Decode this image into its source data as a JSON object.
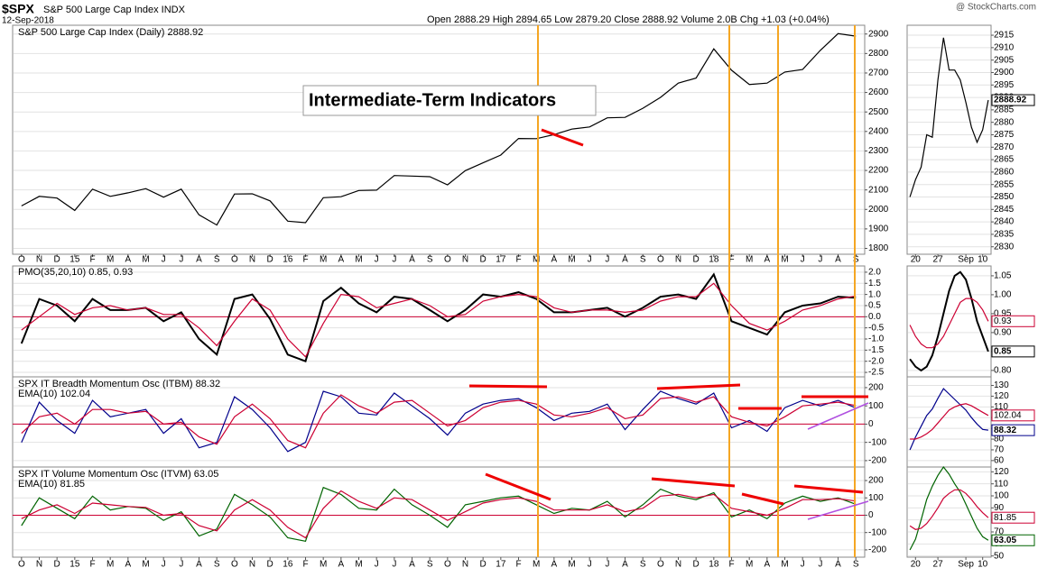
{
  "header": {
    "symbol": "$SPX",
    "name": "S&P 500 Large Cap Index INDX",
    "date": "12-Sep-2018",
    "quote": "Open 2888.29 High 2894.65 Low 2879.20 Close 2888.92 Volume 2.0B Chg +1.03 (+0.04%)",
    "credit": "@ StockCharts.com"
  },
  "chart_data": [
    {
      "type": "line",
      "annotation": "Intermediate-Term Indicators",
      "categories": [
        "O",
        "N",
        "D",
        "15",
        "F",
        "M",
        "A",
        "M",
        "J",
        "J",
        "A",
        "S",
        "O",
        "N",
        "D",
        "16",
        "F",
        "M",
        "A",
        "M",
        "J",
        "J",
        "A",
        "S",
        "O",
        "N",
        "D",
        "17",
        "F",
        "M",
        "A",
        "M",
        "J",
        "J",
        "A",
        "S",
        "O",
        "N",
        "D",
        "18",
        "F",
        "M",
        "A",
        "M",
        "J",
        "J",
        "A",
        "S"
      ],
      "series": [
        {
          "name": "S&P 500 Large Cap Index (Daily) 2888.92",
          "color": "#000000",
          "values": [
            2018,
            2067,
            2058,
            1995,
            2104,
            2067,
            2085,
            2107,
            2063,
            2104,
            1972,
            1920,
            2079,
            2080,
            2044,
            1940,
            1932,
            2060,
            2065,
            2097,
            2099,
            2174,
            2171,
            2168,
            2126,
            2199,
            2239,
            2279,
            2364,
            2363,
            2384,
            2412,
            2423,
            2470,
            2472,
            2519,
            2575,
            2648,
            2674,
            2824,
            2714,
            2641,
            2648,
            2705,
            2718,
            2816,
            2902,
            2889
          ]
        }
      ],
      "ylim": [
        1770,
        2945
      ],
      "yticks": [
        1800,
        1900,
        2000,
        2100,
        2200,
        2300,
        2400,
        2500,
        2600,
        2700,
        2800,
        2900
      ]
    },
    {
      "type": "line",
      "title": "PMO(35,20,10) 0.85, 0.93",
      "reference_line": 0,
      "series": [
        {
          "color": "#000000",
          "values": [
            -1.2,
            0.8,
            0.5,
            -0.2,
            0.8,
            0.3,
            0.3,
            0.4,
            -0.2,
            0.2,
            -1.0,
            -1.7,
            0.8,
            1.0,
            -0.1,
            -1.7,
            -2.0,
            0.7,
            1.3,
            0.6,
            0.2,
            0.9,
            0.8,
            0.3,
            -0.2,
            0.3,
            1.0,
            0.9,
            1.1,
            0.8,
            0.2,
            0.2,
            0.3,
            0.4,
            0.0,
            0.4,
            0.9,
            1.0,
            0.8,
            1.9,
            -0.2,
            -0.5,
            -0.8,
            0.2,
            0.5,
            0.6,
            0.9,
            0.85
          ]
        },
        {
          "color": "#cc0033",
          "values": [
            -0.6,
            0.0,
            0.6,
            0.1,
            0.4,
            0.5,
            0.3,
            0.4,
            0.1,
            0.1,
            -0.5,
            -1.3,
            -0.2,
            0.8,
            0.3,
            -1.0,
            -1.8,
            -0.3,
            1.0,
            0.9,
            0.4,
            0.6,
            0.8,
            0.5,
            0.0,
            0.1,
            0.7,
            0.9,
            1.0,
            0.9,
            0.4,
            0.2,
            0.3,
            0.3,
            0.2,
            0.3,
            0.7,
            0.9,
            0.9,
            1.5,
            0.5,
            -0.3,
            -0.6,
            -0.2,
            0.3,
            0.5,
            0.8,
            0.93
          ]
        }
      ],
      "ylim": [
        -2.7,
        2.28
      ],
      "yticks": [
        -2.5,
        {
          "value": -2,
          "label": "-2.0"
        },
        -1.5,
        {
          "value": -1,
          "label": "-1.0"
        },
        -0.5,
        {
          "value": 0,
          "label": "0.0"
        },
        0.5,
        {
          "value": 1,
          "label": "1.0"
        },
        1.5,
        {
          "value": 2,
          "label": "2.0"
        }
      ]
    },
    {
      "type": "line",
      "reference_line": 0,
      "series": [
        {
          "name": "SPX IT Breadth Momentum Osc (ITBM) 88.32",
          "color": "#00008b",
          "values": [
            -100,
            120,
            20,
            -50,
            130,
            40,
            60,
            80,
            -50,
            30,
            -130,
            -100,
            150,
            80,
            -20,
            -150,
            -100,
            180,
            150,
            60,
            50,
            170,
            100,
            30,
            -60,
            60,
            110,
            130,
            140,
            90,
            20,
            60,
            70,
            110,
            -30,
            80,
            180,
            140,
            110,
            170,
            -20,
            20,
            -40,
            90,
            130,
            100,
            130,
            88.32
          ]
        },
        {
          "name": "EMA(10) 102.04",
          "color": "#cc0033",
          "values": [
            -50,
            40,
            60,
            0,
            80,
            80,
            60,
            70,
            0,
            10,
            -70,
            -110,
            40,
            110,
            30,
            -90,
            -130,
            60,
            160,
            100,
            60,
            120,
            130,
            60,
            -10,
            20,
            90,
            120,
            130,
            110,
            50,
            40,
            60,
            90,
            30,
            50,
            140,
            150,
            120,
            150,
            40,
            10,
            -10,
            40,
            100,
            110,
            120,
            102.04
          ]
        }
      ],
      "ylim": [
        -235,
        259
      ],
      "yticks": [
        -200,
        -100,
        0,
        100,
        200
      ]
    },
    {
      "type": "line",
      "reference_line": 0,
      "categories": [
        "O",
        "N",
        "D",
        "15",
        "F",
        "M",
        "A",
        "M",
        "J",
        "J",
        "A",
        "S",
        "O",
        "N",
        "D",
        "16",
        "F",
        "M",
        "A",
        "M",
        "J",
        "J",
        "A",
        "S",
        "O",
        "N",
        "D",
        "17",
        "F",
        "M",
        "A",
        "M",
        "J",
        "J",
        "A",
        "S",
        "O",
        "N",
        "D",
        "18",
        "F",
        "M",
        "A",
        "M",
        "J",
        "J",
        "A",
        "S"
      ],
      "series": [
        {
          "name": "SPX IT Volume Momentum Osc (ITVM) 63.05",
          "color": "#006400",
          "values": [
            -60,
            100,
            40,
            -20,
            110,
            30,
            50,
            40,
            -30,
            20,
            -120,
            -80,
            120,
            60,
            -10,
            -130,
            -150,
            160,
            120,
            40,
            30,
            150,
            60,
            0,
            -70,
            60,
            80,
            100,
            110,
            60,
            10,
            40,
            30,
            80,
            -10,
            60,
            150,
            110,
            90,
            130,
            -10,
            30,
            -20,
            70,
            110,
            80,
            100,
            63.05
          ]
        },
        {
          "name": "EMA(10) 81.85",
          "color": "#cc0033",
          "values": [
            -20,
            30,
            60,
            10,
            70,
            60,
            50,
            45,
            0,
            10,
            -60,
            -90,
            30,
            90,
            30,
            -70,
            -130,
            40,
            140,
            80,
            40,
            100,
            90,
            30,
            -30,
            20,
            70,
            90,
            100,
            80,
            30,
            30,
            30,
            60,
            20,
            40,
            110,
            120,
            100,
            120,
            40,
            20,
            0,
            40,
            90,
            90,
            95,
            81.85
          ]
        }
      ],
      "ylim": [
        -242,
        278
      ],
      "yticks": [
        -200,
        -100,
        0,
        100,
        200
      ]
    },
    {
      "type": "line",
      "categories": [
        null,
        "20",
        null,
        null,
        null,
        "27",
        null,
        null,
        null,
        null,
        "Sep",
        null,
        null,
        "10",
        null
      ],
      "series": [
        {
          "color": "#000000",
          "values": [
            2850,
            2857,
            2862,
            2875,
            2874,
            2897,
            2914,
            2901,
            2901,
            2897,
            2888,
            2878,
            2872,
            2877,
            2888.92
          ]
        }
      ],
      "ylim": [
        2827,
        2919
      ],
      "yticks": [
        2830,
        2835,
        2840,
        2845,
        2850,
        2855,
        2860,
        2865,
        2870,
        2875,
        2880,
        2885,
        2890,
        2895,
        2900,
        2905,
        2910,
        2915
      ]
    },
    {
      "type": "line",
      "series": [
        {
          "color": "#000000",
          "values": [
            0.83,
            0.81,
            0.8,
            0.81,
            0.84,
            0.89,
            0.95,
            1.01,
            1.05,
            1.06,
            1.04,
            0.99,
            0.93,
            0.89,
            0.85
          ]
        },
        {
          "color": "#cc0033",
          "values": [
            0.92,
            0.89,
            0.87,
            0.86,
            0.86,
            0.87,
            0.89,
            0.92,
            0.95,
            0.98,
            0.99,
            0.99,
            0.98,
            0.96,
            0.93
          ]
        }
      ],
      "ylim": [
        0.783,
        1.076
      ],
      "yticks": [
        {
          "value": 0.8,
          "label": "0.80"
        },
        0.85,
        {
          "value": 0.9,
          "label": "0.90"
        },
        0.95,
        {
          "value": 1,
          "label": "1.00"
        },
        1.05
      ]
    },
    {
      "type": "line",
      "series": [
        {
          "color": "#00008b",
          "values": [
            70,
            82,
            92,
            102,
            108,
            118,
            127,
            122,
            117,
            112,
            107,
            100,
            94,
            89,
            88.32
          ]
        },
        {
          "color": "#cc0033",
          "values": [
            80,
            80,
            82,
            85,
            89,
            95,
            101,
            107,
            110,
            112,
            113,
            111,
            108,
            105,
            102.04
          ]
        }
      ],
      "ylim": [
        54,
        138
      ],
      "yticks": [
        60,
        70,
        80,
        90,
        100,
        110,
        120,
        130
      ]
    },
    {
      "type": "line",
      "categories": [
        null,
        "20",
        null,
        null,
        null,
        "27",
        null,
        null,
        null,
        null,
        "Sep",
        null,
        null,
        "10",
        null
      ],
      "series": [
        {
          "color": "#006400",
          "values": [
            55,
            64,
            80,
            97,
            108,
            117,
            124,
            118,
            110,
            103,
            93,
            83,
            73,
            66,
            63.05
          ]
        },
        {
          "color": "#cc0033",
          "values": [
            75,
            72,
            73,
            77,
            83,
            90,
            98,
            102,
            105,
            105,
            102,
            97,
            91,
            86,
            81.85
          ]
        }
      ],
      "ylim": [
        49,
        124
      ],
      "yticks": [
        50,
        60,
        70,
        80,
        90,
        100,
        110,
        120
      ]
    }
  ]
}
